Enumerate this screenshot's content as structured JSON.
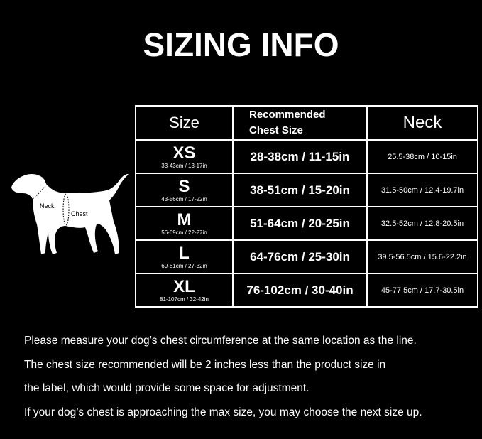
{
  "title": "SIZING INFO",
  "table": {
    "headers": {
      "size": "Size",
      "chest": [
        "Recommended",
        "Chest Size"
      ],
      "neck": "Neck"
    },
    "rows": [
      {
        "size": "XS",
        "sub": "33-43cm / 13-17in",
        "chest": "28-38cm / 11-15in",
        "neck": "25.5-38cm / 10-15in"
      },
      {
        "size": "S",
        "sub": "43-56cm / 17-22in",
        "chest": "38-51cm / 15-20in",
        "neck": "31.5-50cm / 12.4-19.7in"
      },
      {
        "size": "M",
        "sub": "56-69cm / 22-27in",
        "chest": "51-64cm / 20-25in",
        "neck": "32.5-52cm / 12.8-20.5in"
      },
      {
        "size": "L",
        "sub": "69-81cm / 27-32in",
        "chest": "64-76cm / 25-30in",
        "neck": "39.5-56.5cm / 15.6-22.2in"
      },
      {
        "size": "XL",
        "sub": "81-107cm / 32-42in",
        "chest": "76-102cm / 30-40in",
        "neck": "45-77.5cm / 17.7-30.5in"
      }
    ]
  },
  "dog": {
    "neck_label": "Neck",
    "chest_label": "Chest"
  },
  "notes": [
    "Please measure your dog’s chest circumference at the same location as the line.",
    "The chest size recommended will be 2 inches less than the product size in",
    "the label, which would provide some space for adjustment.",
    "If your dog’s chest is approaching the max size, you may choose the next size up."
  ]
}
